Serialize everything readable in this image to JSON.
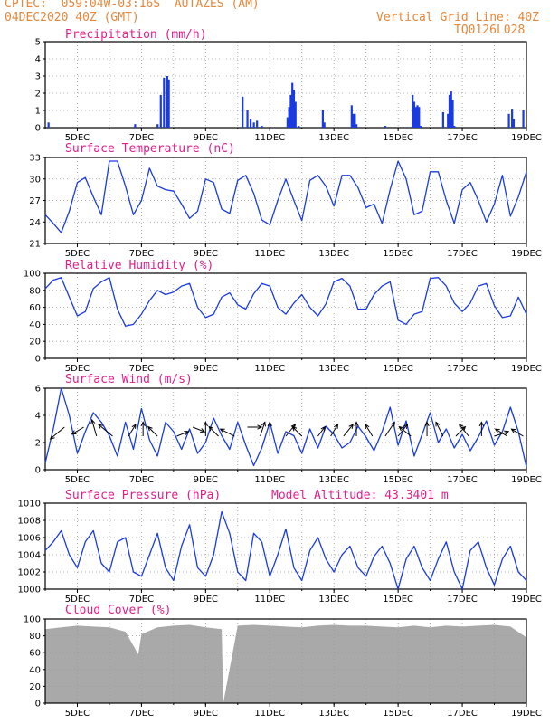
{
  "header": {
    "line1": "CPTEC:  059:04W-03:16S  AUTAZES (AM)",
    "line2": "04DEC2020 40Z (GMT)",
    "grid_note": "Vertical Grid Line: 40Z",
    "code": "TQ0126L028"
  },
  "x_tick_labels": [
    "5DEC",
    "7DEC",
    "9DEC",
    "11DEC",
    "13DEC",
    "15DEC",
    "17DEC",
    "19DEC"
  ],
  "colors": {
    "line": "#1a3be0",
    "bar": "#1a3be0",
    "cloud": "#a9a9a9",
    "title": "#e0208a",
    "header": "#e8873a"
  },
  "chart_data": [
    {
      "type": "bar",
      "title": "Precipitation (mm/h)",
      "ylim": [
        0,
        5
      ],
      "yticks": [
        0,
        1,
        2,
        3,
        4,
        5
      ],
      "x_days": [
        4.1,
        6.8,
        7.5,
        7.6,
        7.7,
        7.8,
        7.85,
        10.15,
        10.3,
        10.4,
        10.5,
        10.6,
        10.75,
        11.55,
        11.6,
        11.65,
        11.7,
        11.75,
        11.8,
        11.9,
        12.65,
        12.7,
        13.55,
        13.6,
        13.65,
        13.7,
        14.6,
        15.45,
        15.5,
        15.55,
        15.6,
        15.65,
        15.7,
        16.4,
        16.55,
        16.6,
        16.65,
        16.7,
        16.75,
        18.45,
        18.55,
        18.6,
        18.9
      ],
      "values": [
        0.3,
        0.2,
        0.2,
        1.9,
        2.9,
        3.0,
        2.8,
        1.8,
        1.0,
        0.5,
        0.3,
        0.4,
        0.1,
        0.6,
        1.2,
        1.9,
        2.6,
        2.2,
        1.5,
        0.1,
        1.0,
        0.3,
        1.3,
        0.8,
        0.8,
        0.2,
        0.1,
        1.9,
        1.5,
        1.2,
        1.3,
        1.2,
        0.1,
        0.9,
        0.8,
        1.9,
        2.1,
        1.6,
        0.1,
        0.8,
        1.1,
        0.5,
        1.0
      ]
    },
    {
      "type": "line",
      "title": "Surface Temperature (nC)",
      "ylim": [
        21,
        33
      ],
      "yticks": [
        21,
        24,
        27,
        30,
        33
      ],
      "x_days": [
        4.0,
        4.25,
        4.5,
        4.75,
        5.0,
        5.25,
        5.5,
        5.75,
        6.0,
        6.25,
        6.5,
        6.75,
        7.0,
        7.25,
        7.5,
        7.75,
        8.0,
        8.25,
        8.5,
        8.75,
        9.0,
        9.25,
        9.5,
        9.75,
        10.0,
        10.25,
        10.5,
        10.75,
        11.0,
        11.25,
        11.5,
        11.75,
        12.0,
        12.25,
        12.5,
        12.75,
        13.0,
        13.25,
        13.5,
        13.75,
        14.0,
        14.25,
        14.5,
        14.75,
        15.0,
        15.25,
        15.5,
        15.75,
        16.0,
        16.25,
        16.5,
        16.75,
        17.0,
        17.25,
        17.5,
        17.75,
        18.0,
        18.25,
        18.5,
        18.75,
        19.0
      ],
      "values": [
        25.0,
        23.8,
        22.5,
        25.5,
        29.5,
        30.2,
        27.5,
        25.0,
        32.5,
        32.5,
        29.0,
        25.0,
        27.0,
        31.5,
        29.0,
        28.5,
        28.3,
        26.5,
        24.5,
        25.5,
        30.0,
        29.5,
        25.8,
        25.2,
        29.8,
        30.5,
        28.0,
        24.3,
        23.6,
        27.0,
        30.0,
        27.0,
        24.2,
        29.8,
        30.5,
        29.0,
        26.2,
        30.5,
        30.5,
        28.8,
        26.0,
        26.5,
        23.8,
        28.5,
        32.5,
        30.0,
        25.0,
        25.5,
        31.0,
        31.0,
        27.0,
        23.8,
        28.5,
        29.5,
        27.0,
        24.0,
        26.5,
        30.5,
        24.8,
        27.5,
        31.0
      ]
    },
    {
      "type": "line",
      "title": "Relative Humidity (%)",
      "ylim": [
        0,
        100
      ],
      "yticks": [
        0,
        20,
        40,
        60,
        80,
        100
      ],
      "x_days": [
        4.0,
        4.25,
        4.5,
        4.75,
        5.0,
        5.25,
        5.5,
        5.75,
        6.0,
        6.25,
        6.5,
        6.75,
        7.0,
        7.25,
        7.5,
        7.75,
        8.0,
        8.25,
        8.5,
        8.75,
        9.0,
        9.25,
        9.5,
        9.75,
        10.0,
        10.25,
        10.5,
        10.75,
        11.0,
        11.25,
        11.5,
        11.75,
        12.0,
        12.25,
        12.5,
        12.75,
        13.0,
        13.25,
        13.5,
        13.75,
        14.0,
        14.25,
        14.5,
        14.75,
        15.0,
        15.25,
        15.5,
        15.75,
        16.0,
        16.25,
        16.5,
        16.75,
        17.0,
        17.25,
        17.5,
        17.75,
        18.0,
        18.25,
        18.5,
        18.75,
        19.0
      ],
      "values": [
        82,
        92,
        95,
        72,
        50,
        55,
        82,
        90,
        95,
        58,
        38,
        40,
        52,
        68,
        80,
        75,
        78,
        85,
        88,
        60,
        48,
        52,
        72,
        77,
        63,
        58,
        76,
        88,
        85,
        60,
        52,
        65,
        75,
        60,
        50,
        64,
        90,
        94,
        85,
        58,
        58,
        75,
        85,
        90,
        45,
        40,
        52,
        55,
        94,
        95,
        85,
        65,
        55,
        65,
        85,
        88,
        62,
        48,
        50,
        72,
        52
      ]
    },
    {
      "type": "line",
      "title": "Surface Wind (m/s)",
      "ylim": [
        0,
        6
      ],
      "yticks": [
        0,
        2,
        4,
        6
      ],
      "x_days": [
        4.0,
        4.25,
        4.5,
        4.75,
        5.0,
        5.25,
        5.5,
        5.75,
        6.0,
        6.25,
        6.5,
        6.75,
        7.0,
        7.25,
        7.5,
        7.75,
        8.0,
        8.25,
        8.5,
        8.75,
        9.0,
        9.25,
        9.5,
        9.75,
        10.0,
        10.25,
        10.5,
        10.75,
        11.0,
        11.25,
        11.5,
        11.75,
        12.0,
        12.25,
        12.5,
        12.75,
        13.0,
        13.25,
        13.5,
        13.75,
        14.0,
        14.25,
        14.5,
        14.75,
        15.0,
        15.25,
        15.5,
        15.75,
        16.0,
        16.25,
        16.5,
        16.75,
        17.0,
        17.25,
        17.5,
        17.75,
        18.0,
        18.25,
        18.5,
        18.75,
        19.0
      ],
      "values": [
        0.5,
        3.0,
        6.0,
        4.0,
        1.2,
        2.8,
        4.2,
        3.5,
        2.5,
        1.0,
        3.5,
        1.5,
        4.5,
        2.2,
        1.0,
        3.5,
        2.8,
        1.5,
        3.0,
        1.2,
        2.0,
        3.8,
        2.5,
        1.5,
        3.5,
        1.8,
        0.3,
        1.6,
        3.5,
        1.2,
        2.8,
        2.5,
        1.2,
        3.0,
        1.6,
        3.2,
        2.6,
        1.6,
        2.0,
        3.2,
        2.4,
        1.4,
        2.8,
        4.6,
        1.8,
        3.6,
        1.0,
        2.6,
        4.2,
        2.0,
        3.0,
        1.6,
        2.6,
        1.4,
        2.4,
        3.6,
        1.8,
        2.8,
        4.6,
        2.8,
        0.2
      ],
      "arrows": [
        {
          "x": 4.6,
          "u": -0.6,
          "v": -0.5
        },
        {
          "x": 5.2,
          "u": -0.5,
          "v": -0.3
        },
        {
          "x": 5.6,
          "u": -0.2,
          "v": 0.7
        },
        {
          "x": 6.1,
          "u": -0.6,
          "v": 0.5
        },
        {
          "x": 6.6,
          "u": 0.3,
          "v": 0.5
        },
        {
          "x": 7.05,
          "u": 0.0,
          "v": 0.6
        },
        {
          "x": 7.5,
          "u": -0.4,
          "v": 0.4
        },
        {
          "x": 8.1,
          "u": 0.5,
          "v": 0.2
        },
        {
          "x": 8.6,
          "u": 0.5,
          "v": -0.2
        },
        {
          "x": 9.0,
          "u": 0.0,
          "v": 0.6
        },
        {
          "x": 9.4,
          "u": -0.4,
          "v": 0.4
        },
        {
          "x": 9.9,
          "u": -0.6,
          "v": 0.3
        },
        {
          "x": 10.3,
          "u": 0.6,
          "v": 0.0
        },
        {
          "x": 10.7,
          "u": 0.2,
          "v": 0.6
        },
        {
          "x": 11.0,
          "u": 0.0,
          "v": 0.6
        },
        {
          "x": 11.5,
          "u": 0.4,
          "v": 0.5
        },
        {
          "x": 12.0,
          "u": -0.4,
          "v": 0.4
        },
        {
          "x": 12.5,
          "u": 0.3,
          "v": 0.4
        },
        {
          "x": 12.9,
          "u": 0.3,
          "v": 0.5
        },
        {
          "x": 13.3,
          "u": 0.4,
          "v": 0.5
        },
        {
          "x": 13.7,
          "u": 0.0,
          "v": 0.6
        },
        {
          "x": 14.2,
          "u": -0.3,
          "v": 0.5
        },
        {
          "x": 14.6,
          "u": 0.4,
          "v": 0.6
        },
        {
          "x": 15.0,
          "u": 0.4,
          "v": 0.5
        },
        {
          "x": 15.4,
          "u": -0.5,
          "v": 0.4
        },
        {
          "x": 15.9,
          "u": 0.0,
          "v": 0.6
        },
        {
          "x": 16.4,
          "u": -0.3,
          "v": 0.6
        },
        {
          "x": 16.8,
          "u": 0.4,
          "v": 0.4
        },
        {
          "x": 17.2,
          "u": -0.4,
          "v": 0.5
        },
        {
          "x": 17.6,
          "u": 0.0,
          "v": 0.6
        },
        {
          "x": 18.0,
          "u": 0.6,
          "v": 0.2
        },
        {
          "x": 18.4,
          "u": -0.5,
          "v": 0.3
        },
        {
          "x": 18.9,
          "u": -0.5,
          "v": 0.3
        }
      ]
    },
    {
      "type": "line",
      "title": "Surface Pressure (hPa)",
      "annotation": "Model Altitude: 43.3401 m",
      "ylim": [
        1000,
        1010
      ],
      "yticks": [
        1000,
        1002,
        1004,
        1006,
        1008,
        1010
      ],
      "x_days": [
        4.0,
        4.25,
        4.5,
        4.75,
        5.0,
        5.25,
        5.5,
        5.75,
        6.0,
        6.25,
        6.5,
        6.75,
        7.0,
        7.25,
        7.5,
        7.75,
        8.0,
        8.25,
        8.5,
        8.75,
        9.0,
        9.25,
        9.5,
        9.75,
        10.0,
        10.25,
        10.5,
        10.75,
        11.0,
        11.25,
        11.5,
        11.75,
        12.0,
        12.25,
        12.5,
        12.75,
        13.0,
        13.25,
        13.5,
        13.75,
        14.0,
        14.25,
        14.5,
        14.75,
        15.0,
        15.25,
        15.5,
        15.75,
        16.0,
        16.25,
        16.5,
        16.75,
        17.0,
        17.25,
        17.5,
        17.75,
        18.0,
        18.25,
        18.5,
        18.75,
        19.0
      ],
      "values": [
        1004.5,
        1005.5,
        1006.8,
        1004.0,
        1002.5,
        1005.5,
        1006.8,
        1003.0,
        1002.0,
        1005.5,
        1006.0,
        1002.0,
        1001.5,
        1004.0,
        1006.5,
        1002.5,
        1001.0,
        1005.0,
        1007.5,
        1002.5,
        1001.5,
        1004.0,
        1009.0,
        1006.5,
        1002.0,
        1001.0,
        1006.5,
        1005.5,
        1001.5,
        1004.0,
        1007.0,
        1002.5,
        1001.0,
        1004.5,
        1006.0,
        1003.5,
        1002.0,
        1004.0,
        1005.0,
        1002.5,
        1001.5,
        1003.8,
        1005.0,
        1003.0,
        1000.0,
        1003.5,
        1005.0,
        1002.5,
        1001.0,
        1003.5,
        1005.5,
        1002.0,
        1000.0,
        1004.5,
        1005.5,
        1002.5,
        1000.5,
        1003.5,
        1005.0,
        1002.0,
        1001.0
      ]
    },
    {
      "type": "bar",
      "title": "Cloud Cover (%)",
      "ylim": [
        0,
        100
      ],
      "yticks": [
        0,
        20,
        40,
        60,
        80,
        100
      ],
      "x_days": [
        4.0,
        4.5,
        5.0,
        5.5,
        6.0,
        6.5,
        6.9,
        7.0,
        7.5,
        8.0,
        8.5,
        9.0,
        9.5,
        9.55,
        10.0,
        10.5,
        11.0,
        11.5,
        12.0,
        12.5,
        13.0,
        13.5,
        14.0,
        14.5,
        15.0,
        15.5,
        16.0,
        16.5,
        17.0,
        17.5,
        18.0,
        18.5,
        19.0
      ],
      "values": [
        88,
        90,
        92,
        91,
        90,
        85,
        58,
        82,
        90,
        92,
        93,
        90,
        88,
        0,
        92,
        93,
        92,
        91,
        90,
        92,
        93,
        92,
        92,
        91,
        90,
        92,
        90,
        92,
        91,
        92,
        93,
        91,
        78
      ]
    }
  ]
}
